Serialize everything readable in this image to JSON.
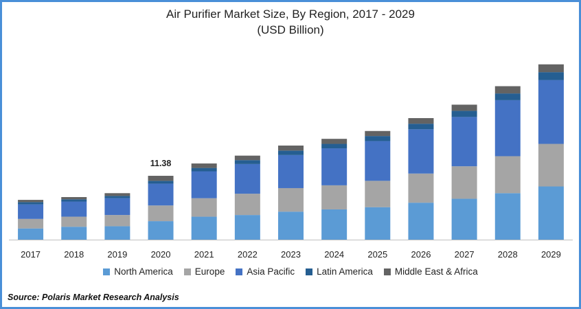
{
  "title": "Air Purifier Market Size, By Region, 2017 - 2029",
  "subtitle": "(USD Billion)",
  "source": "Source: Polaris  Market Research Analysis",
  "colors": {
    "North America": "#5b9bd5",
    "Europe": "#a5a5a5",
    "Asia Pacific": "#4472c4",
    "Latin America": "#255e91",
    "Middle East & Africa": "#636363"
  },
  "chart_data": {
    "type": "bar",
    "stacked": true,
    "categories": [
      "2017",
      "2018",
      "2019",
      "2020",
      "2021",
      "2022",
      "2023",
      "2024",
      "2025",
      "2026",
      "2027",
      "2028",
      "2029"
    ],
    "series": [
      {
        "name": "North America",
        "values": [
          2.0,
          2.3,
          2.4,
          3.3,
          4.1,
          4.4,
          5.0,
          5.4,
          5.8,
          6.6,
          7.3,
          8.3,
          9.5
        ]
      },
      {
        "name": "Europe",
        "values": [
          1.7,
          1.8,
          2.0,
          2.8,
          3.3,
          3.8,
          4.2,
          4.3,
          4.7,
          5.2,
          5.8,
          6.6,
          7.6
        ]
      },
      {
        "name": "Asia Pacific",
        "values": [
          2.6,
          2.7,
          3.0,
          3.9,
          4.8,
          5.3,
          5.9,
          6.6,
          7.1,
          7.9,
          8.8,
          10.0,
          11.4
        ]
      },
      {
        "name": "Latin America",
        "values": [
          0.4,
          0.4,
          0.4,
          0.5,
          0.6,
          0.7,
          0.8,
          0.8,
          0.9,
          1.0,
          1.1,
          1.2,
          1.4
        ]
      },
      {
        "name": "Middle East & Africa",
        "values": [
          0.4,
          0.4,
          0.5,
          0.9,
          0.8,
          0.8,
          0.9,
          0.9,
          0.9,
          1.0,
          1.1,
          1.3,
          1.4
        ]
      }
    ],
    "annotations": [
      {
        "category": "2020",
        "text": "11.38"
      }
    ],
    "ylim": [
      0,
      32
    ],
    "grid": false,
    "legend_position": "bottom"
  }
}
